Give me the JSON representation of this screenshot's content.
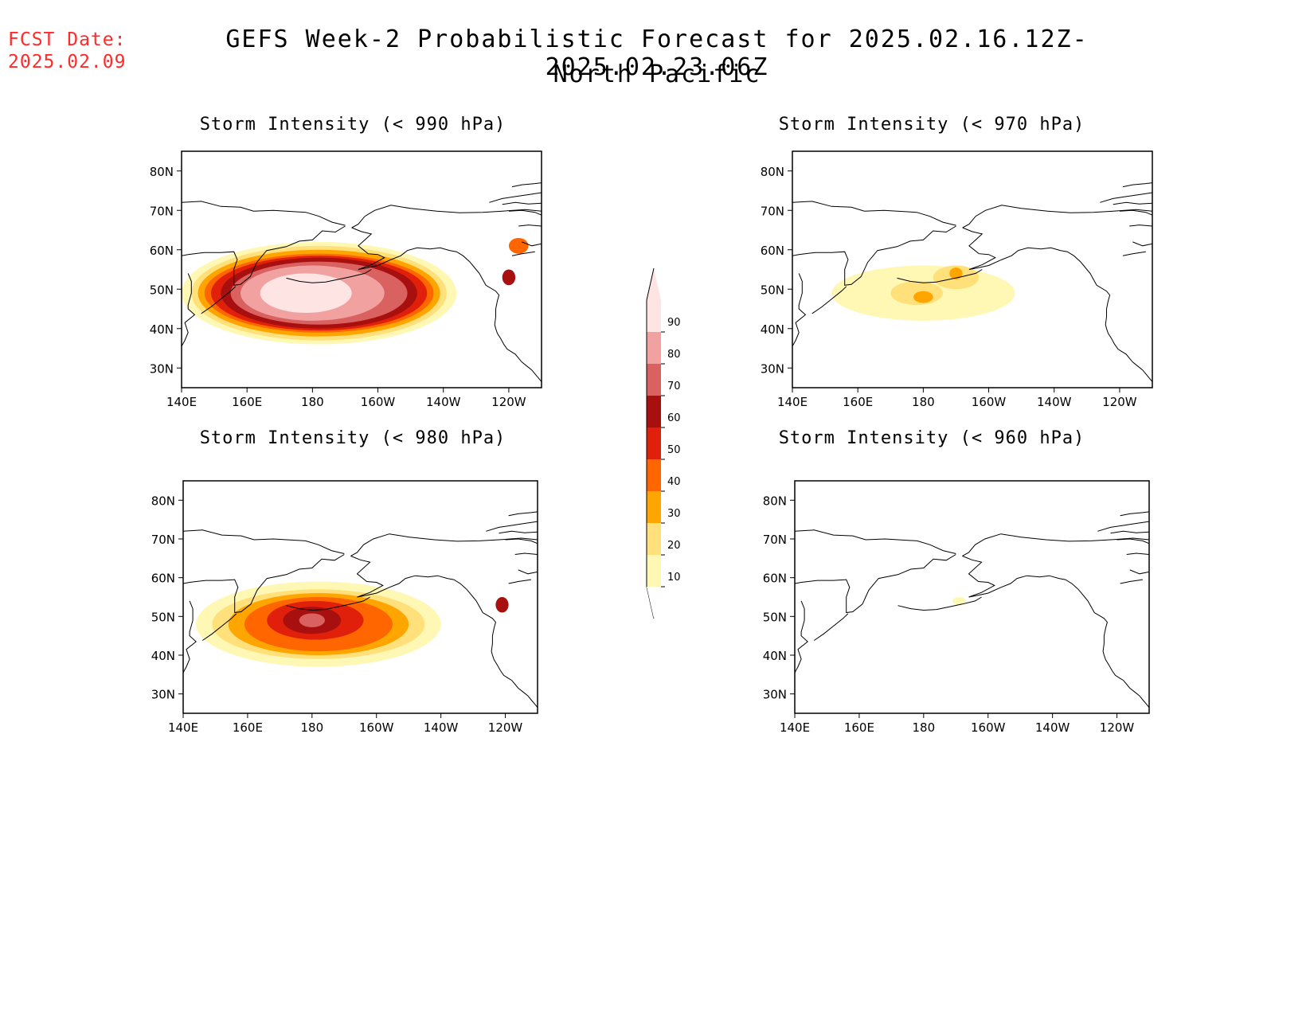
{
  "fcst_date": {
    "label": "FCST Date:",
    "value": "2025.02.09"
  },
  "title": {
    "line1": "GEFS Week-2 Probabilistic Forecast for 2025.02.16.12Z-2025.02.23.06Z",
    "line2": "North Pacific"
  },
  "colorbar": {
    "ticks": [
      "10",
      "20",
      "30",
      "40",
      "50",
      "60",
      "70",
      "80",
      "90"
    ],
    "colors": [
      "#fff8b4",
      "#ffe07a",
      "#ffa500",
      "#ff6600",
      "#e0200a",
      "#a80f0f",
      "#d9615f",
      "#f2a1a1",
      "#ffe4e4",
      "#ffffff"
    ]
  },
  "chart_data": [
    {
      "type": "heatmap",
      "title": "Storm Intensity (< 990 hPa)",
      "xticks": [
        "140E",
        "160E",
        "180",
        "160W",
        "140W",
        "120W"
      ],
      "yticks": [
        "80N",
        "70N",
        "60N",
        "50N",
        "40N",
        "30N"
      ],
      "ylim": [
        25,
        85
      ],
      "xlim": [
        140,
        250
      ],
      "regions": [
        {
          "lon": 182,
          "lat": 49,
          "rx": 42,
          "ry": 13,
          "level": 10
        },
        {
          "lon": 182,
          "lat": 49,
          "rx": 39,
          "ry": 12,
          "level": 20
        },
        {
          "lon": 182,
          "lat": 49,
          "rx": 37,
          "ry": 11,
          "level": 30
        },
        {
          "lon": 182,
          "lat": 49,
          "rx": 35,
          "ry": 10,
          "level": 40
        },
        {
          "lon": 182,
          "lat": 49,
          "rx": 33,
          "ry": 9.5,
          "level": 50
        },
        {
          "lon": 182,
          "lat": 49,
          "rx": 30,
          "ry": 9,
          "level": 60
        },
        {
          "lon": 182,
          "lat": 49,
          "rx": 27,
          "ry": 8,
          "level": 70
        },
        {
          "lon": 180,
          "lat": 49,
          "rx": 22,
          "ry": 7,
          "level": 80
        },
        {
          "lon": 178,
          "lat": 49,
          "rx": 14,
          "ry": 5,
          "level": 90
        },
        {
          "lon": 240,
          "lat": 53,
          "rx": 2,
          "ry": 2,
          "level": 60
        },
        {
          "lon": 243,
          "lat": 61,
          "rx": 3,
          "ry": 2,
          "level": 40
        }
      ]
    },
    {
      "type": "heatmap",
      "title": "Storm Intensity (< 970 hPa)",
      "xticks": [
        "140E",
        "160E",
        "180",
        "160W",
        "140W",
        "120W"
      ],
      "yticks": [
        "80N",
        "70N",
        "60N",
        "50N",
        "40N",
        "30N"
      ],
      "ylim": [
        25,
        85
      ],
      "xlim": [
        140,
        250
      ],
      "regions": [
        {
          "lon": 180,
          "lat": 49,
          "rx": 28,
          "ry": 7,
          "level": 10
        },
        {
          "lon": 178,
          "lat": 49,
          "rx": 8,
          "ry": 3,
          "level": 20
        },
        {
          "lon": 190,
          "lat": 53,
          "rx": 7,
          "ry": 3,
          "level": 20
        },
        {
          "lon": 180,
          "lat": 48,
          "rx": 3,
          "ry": 1.5,
          "level": 30
        },
        {
          "lon": 190,
          "lat": 54,
          "rx": 2,
          "ry": 1.5,
          "level": 30
        }
      ]
    },
    {
      "type": "heatmap",
      "title": "Storm Intensity (< 980 hPa)",
      "xticks": [
        "140E",
        "160E",
        "180",
        "160W",
        "140W",
        "120W"
      ],
      "yticks": [
        "80N",
        "70N",
        "60N",
        "50N",
        "40N",
        "30N"
      ],
      "ylim": [
        25,
        85
      ],
      "xlim": [
        140,
        250
      ],
      "regions": [
        {
          "lon": 182,
          "lat": 48,
          "rx": 38,
          "ry": 11,
          "level": 10
        },
        {
          "lon": 182,
          "lat": 48,
          "rx": 33,
          "ry": 9,
          "level": 20
        },
        {
          "lon": 182,
          "lat": 48,
          "rx": 28,
          "ry": 8,
          "level": 30
        },
        {
          "lon": 182,
          "lat": 48,
          "rx": 23,
          "ry": 7,
          "level": 40
        },
        {
          "lon": 181,
          "lat": 49,
          "rx": 15,
          "ry": 5,
          "level": 50
        },
        {
          "lon": 180,
          "lat": 49,
          "rx": 9,
          "ry": 3.5,
          "level": 60
        },
        {
          "lon": 180,
          "lat": 49,
          "rx": 4,
          "ry": 1.8,
          "level": 70
        },
        {
          "lon": 239,
          "lat": 53,
          "rx": 2,
          "ry": 2,
          "level": 60
        }
      ]
    },
    {
      "type": "heatmap",
      "title": "Storm Intensity (< 960 hPa)",
      "xticks": [
        "140E",
        "160E",
        "180",
        "160W",
        "140W",
        "120W"
      ],
      "yticks": [
        "80N",
        "70N",
        "60N",
        "50N",
        "40N",
        "30N"
      ],
      "ylim": [
        25,
        85
      ],
      "xlim": [
        140,
        250
      ],
      "regions": [
        {
          "lon": 191,
          "lat": 54,
          "rx": 2,
          "ry": 1,
          "level": 10
        }
      ]
    }
  ]
}
